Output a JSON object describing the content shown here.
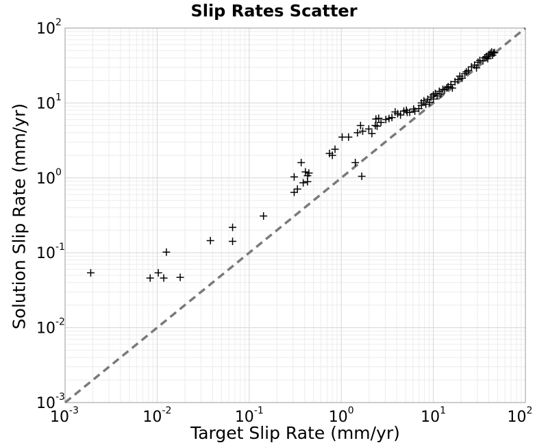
{
  "chart_data": {
    "type": "scatter",
    "title": "Slip Rates Scatter",
    "xlabel": "Target Slip Rate (mm/yr)",
    "ylabel": "Solution Slip Rate (mm/yr)",
    "x_scale": "log",
    "y_scale": "log",
    "xlim": [
      0.001,
      100
    ],
    "ylim": [
      0.001,
      100
    ],
    "grid": true,
    "x_ticks": [
      {
        "base": "10",
        "exp": "-3",
        "value": 0.001
      },
      {
        "base": "10",
        "exp": "-2",
        "value": 0.01
      },
      {
        "base": "10",
        "exp": "-1",
        "value": 0.1
      },
      {
        "base": "10",
        "exp": "0",
        "value": 1
      },
      {
        "base": "10",
        "exp": "1",
        "value": 10
      },
      {
        "base": "10",
        "exp": "2",
        "value": 100
      }
    ],
    "y_ticks": [
      {
        "base": "10",
        "exp": "-3",
        "value": 0.001
      },
      {
        "base": "10",
        "exp": "-2",
        "value": 0.01
      },
      {
        "base": "10",
        "exp": "-1",
        "value": 0.1
      },
      {
        "base": "10",
        "exp": "0",
        "value": 1
      },
      {
        "base": "10",
        "exp": "1",
        "value": 10
      },
      {
        "base": "10",
        "exp": "2",
        "value": 100
      }
    ],
    "reference_line": {
      "style": "dashed",
      "color": "#7a7a7a",
      "from": [
        0.001,
        0.001
      ],
      "to": [
        100,
        100
      ]
    },
    "marker": {
      "shape": "plus",
      "color": "#000000"
    },
    "points": [
      [
        0.0019,
        0.054
      ],
      [
        0.0084,
        0.046
      ],
      [
        0.0103,
        0.054
      ],
      [
        0.0118,
        0.046
      ],
      [
        0.0126,
        0.102
      ],
      [
        0.0178,
        0.047
      ],
      [
        0.0379,
        0.145
      ],
      [
        0.066,
        0.142
      ],
      [
        0.066,
        0.218
      ],
      [
        0.143,
        0.31
      ],
      [
        0.308,
        1.03
      ],
      [
        0.308,
        0.64
      ],
      [
        0.334,
        0.71
      ],
      [
        0.367,
        1.6
      ],
      [
        0.386,
        0.86
      ],
      [
        0.408,
        1.2
      ],
      [
        0.43,
        1.07
      ],
      [
        0.43,
        0.89
      ],
      [
        0.445,
        1.16
      ],
      [
        0.745,
        2.12
      ],
      [
        0.8,
        2.0
      ],
      [
        0.855,
        2.41
      ],
      [
        1.023,
        3.5
      ],
      [
        1.2,
        3.5
      ],
      [
        1.42,
        1.6
      ],
      [
        1.67,
        1.05
      ],
      [
        1.5,
        4.0
      ],
      [
        1.62,
        5.0
      ],
      [
        1.71,
        4.2
      ],
      [
        1.99,
        4.5
      ],
      [
        2.15,
        3.9
      ],
      [
        2.34,
        5.0
      ],
      [
        2.38,
        6.1
      ],
      [
        2.55,
        6.25
      ],
      [
        2.45,
        4.9
      ],
      [
        2.7,
        5.5
      ],
      [
        3.05,
        6.0
      ],
      [
        3.3,
        6.2
      ],
      [
        3.55,
        6.4
      ],
      [
        3.85,
        7.6
      ],
      [
        4.1,
        7.2
      ],
      [
        4.4,
        6.9
      ],
      [
        4.78,
        7.8
      ],
      [
        5.1,
        8.0
      ],
      [
        5.2,
        7.5
      ],
      [
        5.54,
        7.5
      ],
      [
        6.1,
        8.3
      ],
      [
        6.3,
        7.8
      ],
      [
        6.96,
        8.4
      ],
      [
        7.43,
        9.3
      ],
      [
        7.43,
        10.0
      ],
      [
        7.9,
        10.7
      ],
      [
        8.3,
        9.6
      ],
      [
        8.69,
        11.2
      ],
      [
        9.1,
        10.2
      ],
      [
        9.45,
        12.0
      ],
      [
        10.0,
        12.8
      ],
      [
        10.0,
        11.3
      ],
      [
        10.5,
        13.4
      ],
      [
        11.0,
        12.4
      ],
      [
        11.6,
        14.3
      ],
      [
        12.1,
        13.2
      ],
      [
        12.7,
        15.2
      ],
      [
        13.3,
        15.0
      ],
      [
        14.0,
        15.9
      ],
      [
        14.5,
        16.5
      ],
      [
        15.5,
        17.6
      ],
      [
        16.1,
        15.8
      ],
      [
        17.2,
        19.2
      ],
      [
        18.5,
        20.5
      ],
      [
        19.4,
        22.8
      ],
      [
        20.5,
        21.4
      ],
      [
        22.0,
        24.6
      ],
      [
        22.8,
        26.0
      ],
      [
        24.0,
        27.2
      ],
      [
        26.0,
        30.4
      ],
      [
        28.0,
        32.0
      ],
      [
        29.4,
        29.4
      ],
      [
        30.6,
        35.0
      ],
      [
        32.0,
        37.0
      ],
      [
        34.6,
        36.5
      ],
      [
        36.0,
        40.0
      ],
      [
        37.5,
        41.5
      ],
      [
        39.0,
        39.0
      ],
      [
        40.0,
        44.0
      ],
      [
        41.5,
        46.0
      ],
      [
        43.0,
        48.0
      ],
      [
        44.0,
        43.5
      ],
      [
        45.0,
        46.5
      ],
      [
        46.2,
        47.0
      ]
    ]
  }
}
